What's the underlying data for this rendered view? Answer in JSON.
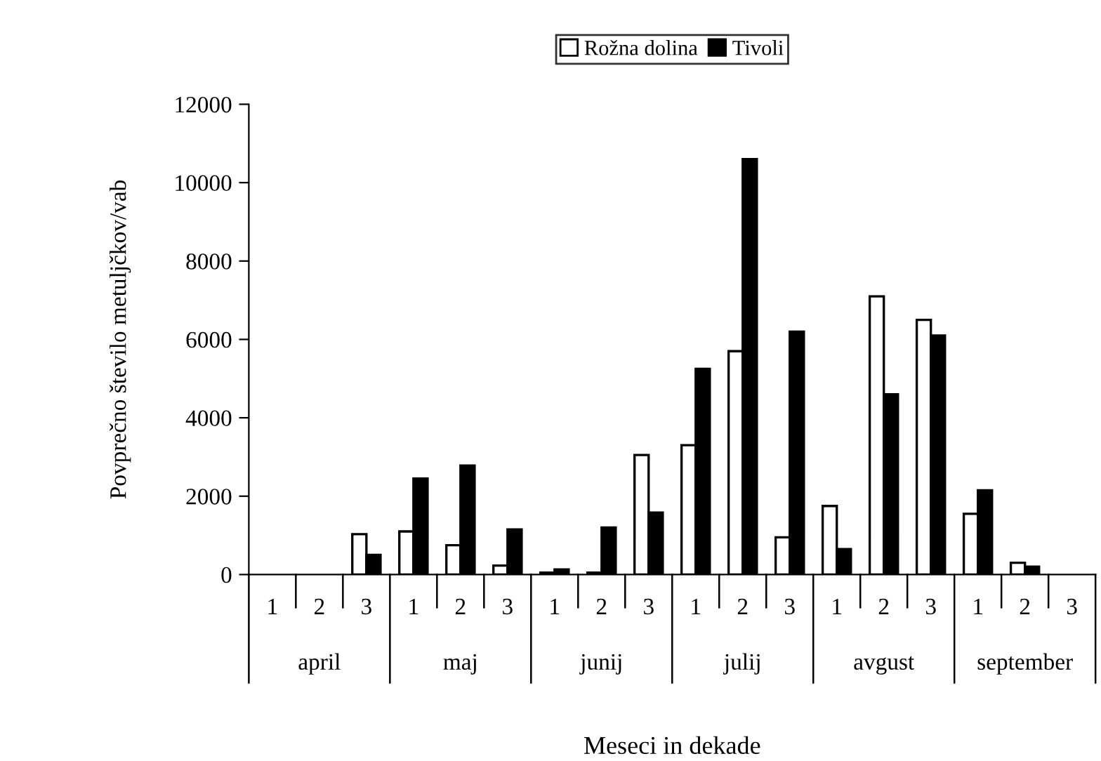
{
  "chart_data": {
    "type": "bar",
    "xlabel": "Meseci in dekade",
    "ylabel": "Povprečno število metuljčkov/vab",
    "categories": [
      "1",
      "2",
      "3",
      "1",
      "2",
      "3",
      "1",
      "2",
      "3",
      "1",
      "2",
      "3",
      "1",
      "2",
      "3",
      "1",
      "2",
      "3"
    ],
    "annotations": [
      "april",
      "maj",
      "junij",
      "julij",
      "avgust",
      "september"
    ],
    "series": [
      {
        "name": "Rožna dolina",
        "color": "#ffffff",
        "values": [
          null,
          null,
          1030,
          1100,
          750,
          230,
          50,
          50,
          3050,
          3300,
          5700,
          950,
          1750,
          7100,
          6500,
          1550,
          300,
          null
        ]
      },
      {
        "name": "Tivoli",
        "color": "#000000",
        "values": [
          null,
          null,
          500,
          2450,
          2780,
          1150,
          130,
          1200,
          1580,
          5250,
          10600,
          6200,
          650,
          4600,
          6100,
          2150,
          200,
          null
        ]
      }
    ],
    "ylim": [
      0,
      12000
    ],
    "yticks": [
      0,
      2000,
      4000,
      6000,
      8000,
      10000,
      12000
    ],
    "grid": false,
    "legend": "top"
  }
}
